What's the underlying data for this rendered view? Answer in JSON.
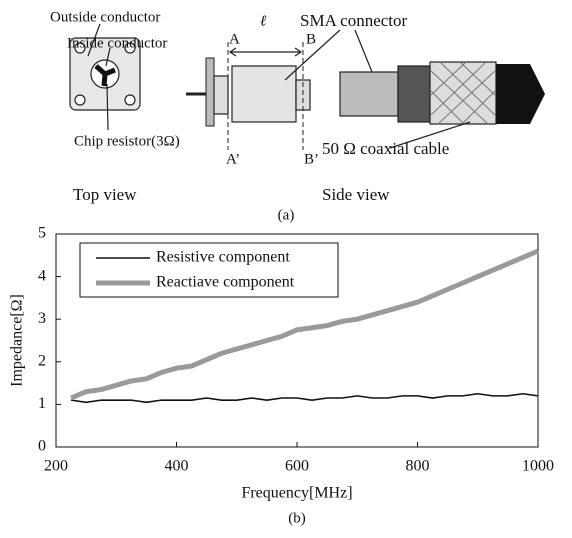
{
  "diagram": {
    "labels": {
      "outside_conductor": "Outside conductor",
      "inside_conductor": "Inside conductor",
      "chip_resistor": "Chip resistor(3Ω)",
      "a": "A",
      "b": "B",
      "length": "ℓ",
      "a_prime": "A’",
      "b_prime": "B’",
      "sma": "SMA connector",
      "cable": "50 Ω  coaxial cable",
      "top_view": "Top view",
      "side_view": "Side view"
    },
    "caption": "(a)"
  },
  "chart_data": {
    "type": "line",
    "x_label": "Frequency[MHz]",
    "y_label": "Impedance[Ω]",
    "caption": "(b)",
    "x": [
      225,
      250,
      275,
      300,
      325,
      350,
      375,
      400,
      425,
      450,
      475,
      500,
      525,
      550,
      575,
      600,
      625,
      650,
      675,
      700,
      725,
      750,
      775,
      800,
      825,
      850,
      875,
      900,
      925,
      950,
      975,
      1000
    ],
    "series": [
      {
        "name": "Resistive component",
        "color": "#111111",
        "values": [
          1.1,
          1.05,
          1.1,
          1.1,
          1.1,
          1.05,
          1.1,
          1.1,
          1.1,
          1.15,
          1.1,
          1.1,
          1.15,
          1.1,
          1.15,
          1.15,
          1.1,
          1.15,
          1.15,
          1.2,
          1.15,
          1.15,
          1.2,
          1.2,
          1.15,
          1.2,
          1.2,
          1.25,
          1.2,
          1.2,
          1.25,
          1.2
        ]
      },
      {
        "name": "Reactiave component",
        "color": "#9a9a9a",
        "values": [
          1.15,
          1.3,
          1.35,
          1.45,
          1.55,
          1.6,
          1.75,
          1.85,
          1.9,
          2.05,
          2.2,
          2.3,
          2.4,
          2.5,
          2.6,
          2.75,
          2.8,
          2.85,
          2.95,
          3.0,
          3.1,
          3.2,
          3.3,
          3.4,
          3.55,
          3.7,
          3.85,
          4.0,
          4.15,
          4.3,
          4.45,
          4.6
        ]
      }
    ],
    "xlim": [
      200,
      1000
    ],
    "xticks": [
      200,
      400,
      600,
      800,
      1000
    ],
    "ylim": [
      0,
      5
    ],
    "yticks": [
      0,
      1,
      2,
      3,
      4,
      5
    ],
    "legend": "upper-left"
  }
}
